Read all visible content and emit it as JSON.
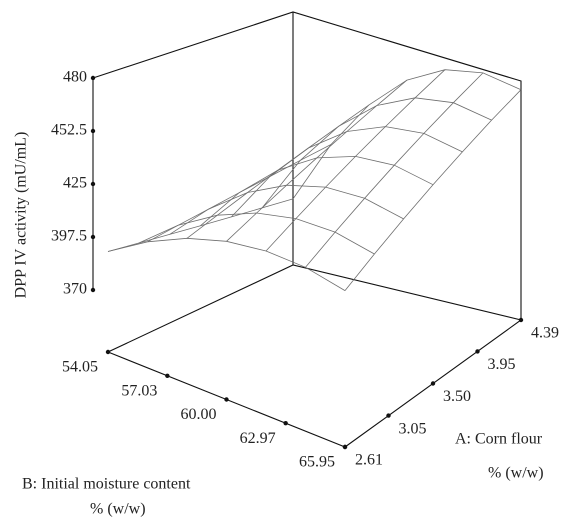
{
  "chart_data": {
    "type": "surface",
    "zlabel": "DPP IV activity (mU/mL)",
    "xlabel": [
      "A: Corn flour",
      "% (w/w)"
    ],
    "ylabel": [
      "B: Initial moisture content",
      "% (w/w)"
    ],
    "x": [
      2.61,
      2.907,
      3.203,
      3.5,
      3.797,
      4.093,
      4.39
    ],
    "y": [
      54.05,
      56.033,
      58.017,
      60.0,
      61.983,
      63.967,
      65.95
    ],
    "z": [
      [
        390.0,
        402.6,
        411.8,
        417.6,
        419.9,
        418.9,
        414.5
      ],
      [
        387.5,
        404.1,
        416.5,
        424.7,
        428.8,
        428.8,
        424.6
      ],
      [
        385.0,
        405.5,
        421.2,
        431.9,
        437.7,
        438.6,
        434.6
      ],
      [
        382.5,
        407.0,
        425.9,
        439.1,
        446.6,
        448.5,
        444.7
      ],
      [
        380.0,
        408.5,
        430.6,
        446.2,
        455.5,
        458.3,
        454.7
      ],
      [
        377.5,
        410.0,
        435.3,
        453.4,
        464.3,
        468.1,
        464.8
      ],
      [
        375.0,
        411.4,
        440.0,
        460.6,
        473.2,
        478.0,
        474.8
      ]
    ],
    "xlim": [
      2.61,
      4.39
    ],
    "ylim": [
      54.05,
      65.95
    ],
    "zlim": [
      370,
      480
    ],
    "xticks": [
      2.61,
      3.05,
      {
        "value": 3.5,
        "label": "3.50"
      },
      3.95,
      4.39
    ],
    "yticks": [
      54.05,
      57.03,
      {
        "value": 60,
        "label": "60.00"
      },
      62.97,
      65.95
    ],
    "zticks": [
      370,
      397.5,
      425,
      452.5,
      480
    ],
    "color": "#6e6e6e"
  }
}
